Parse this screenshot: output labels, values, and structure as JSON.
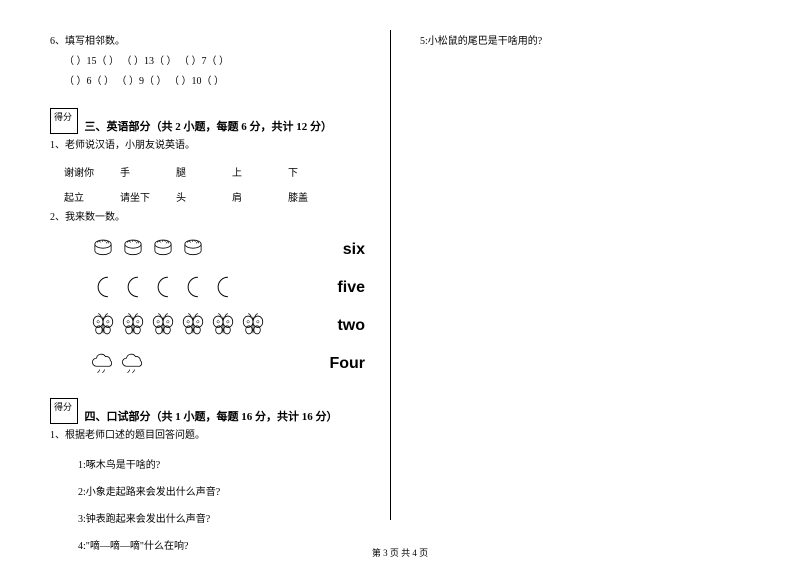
{
  "leftCol": {
    "q6": {
      "title": "6、填写相邻数。",
      "row1": "（  ）15（  ）     （  ）13（  ）     （  ）7（  ）",
      "row2": "（  ）6（  ）      （  ）9（  ）      （  ）10（  ）"
    },
    "section3": {
      "scoreLabel": "得分",
      "title": "三、英语部分（共 2 小题，每题 6 分，共计 12 分）",
      "q1": "1、老师说汉语，小朋友说英语。",
      "words1": [
        "谢谢你",
        "手",
        "腿",
        "上",
        "下"
      ],
      "words2": [
        "起立",
        "请坐下",
        "头",
        "肩",
        "膝盖"
      ],
      "q2": "2、我来数一数。",
      "counts": [
        {
          "n": 4,
          "kind": "cake",
          "label": "six"
        },
        {
          "n": 5,
          "kind": "moon",
          "label": "five"
        },
        {
          "n": 6,
          "kind": "butterfly",
          "label": "two"
        },
        {
          "n": 2,
          "kind": "cloud",
          "label": "Four"
        }
      ]
    },
    "section4": {
      "scoreLabel": "得分",
      "title": "四、口试部分（共 1 小题，每题 16 分，共计 16 分）",
      "q1": "1、根据老师口述的题目回答问题。",
      "subs": [
        "1:啄木鸟是干啥的?",
        "2:小象走起路来会发出什么声音?",
        "3:钟表跑起来会发出什么声音?",
        "4:\"嘀—嘀—嘀\"什么在响?"
      ]
    }
  },
  "rightCol": {
    "q5": "5:小松鼠的尾巴是干啥用的?"
  },
  "footer": "第 3 页 共 4 页"
}
